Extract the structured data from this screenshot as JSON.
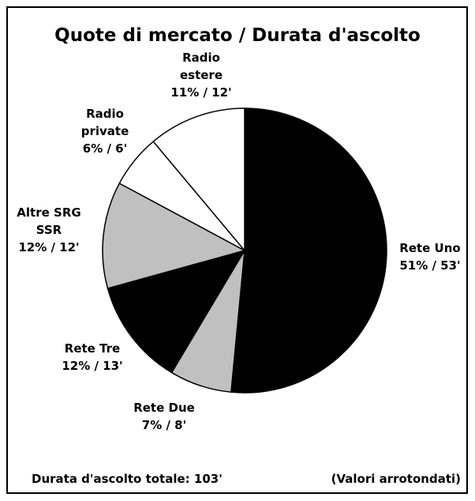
{
  "chart_data": {
    "type": "pie",
    "title": "Quote di mercato / Durata d'ascolto",
    "categories": [
      "Rete Uno",
      "Rete Due",
      "Rete Tre",
      "Altre SRG\nSSR",
      "Radio\nprivate",
      "Radio\nestere"
    ],
    "values": [
      51,
      7,
      12,
      12,
      6,
      11
    ],
    "value_labels": [
      "51% / 53'",
      "7% / 8'",
      "12% / 13'",
      "12% / 12'",
      "6% / 6'",
      "11% / 12'"
    ],
    "colors": [
      "#000000",
      "#c0c0c0",
      "#000000",
      "#c0c0c0",
      "#ffffff",
      "#ffffff"
    ],
    "footnote_left": "Durata d'ascolto totale: 103'",
    "footnote_right": "(Valori arrotondati)"
  }
}
